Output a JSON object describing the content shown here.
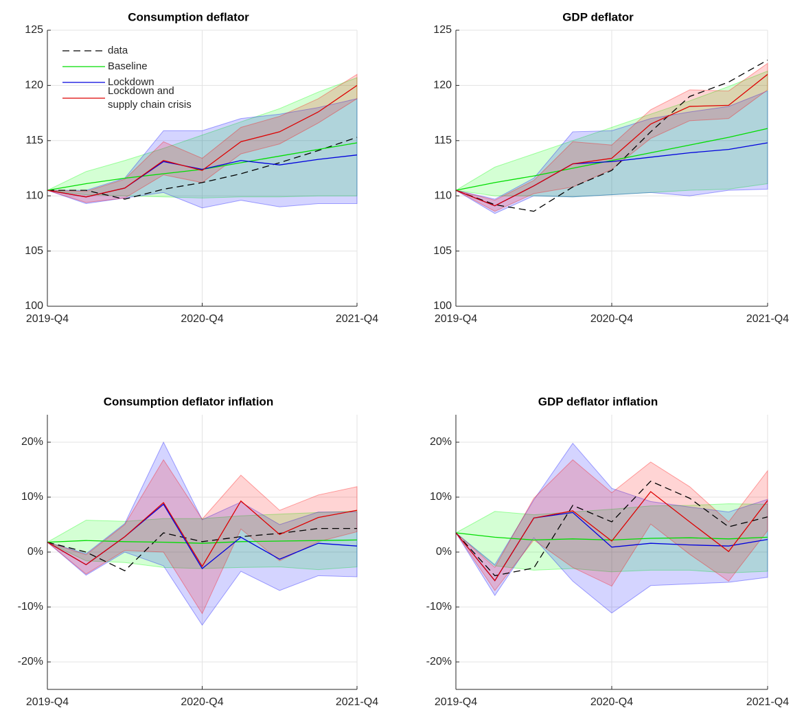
{
  "chart_data": [
    {
      "type": "line",
      "title": "Consumption deflator",
      "categories": [
        "2019-Q4",
        null,
        null,
        null,
        "2020-Q4",
        null,
        null,
        null,
        "2021-Q4"
      ],
      "ylim": [
        100,
        125
      ],
      "yticks": [
        100,
        105,
        110,
        115,
        120,
        125
      ],
      "grid": true,
      "legend": "upper left",
      "series": [
        {
          "name": "data",
          "color": "#000000",
          "dash": true,
          "values": [
            110.5,
            110.5,
            109.7,
            110.6,
            111.2,
            112.0,
            113.0,
            114.1,
            115.3
          ]
        },
        {
          "name": "Baseline",
          "color": "#00dd00",
          "values": [
            110.5,
            111.1,
            111.6,
            112.0,
            112.4,
            113.0,
            113.6,
            114.2,
            114.8
          ]
        },
        {
          "name": "Lockdown",
          "color": "#0000dd",
          "values": [
            110.5,
            109.9,
            110.7,
            113.1,
            112.4,
            113.2,
            112.8,
            113.3,
            113.7
          ]
        },
        {
          "name": "Lockdown and\nsupply chain crisis",
          "color": "#dd0000",
          "values": [
            110.5,
            109.9,
            110.7,
            113.2,
            112.3,
            114.9,
            115.8,
            117.6,
            120.0
          ]
        }
      ],
      "bands": [
        {
          "color": "#00ff00",
          "upper": [
            110.5,
            112.2,
            113.2,
            114.3,
            115.5,
            116.7,
            117.9,
            119.4,
            120.7
          ],
          "lower": [
            110.5,
            110.1,
            110.0,
            109.9,
            109.8,
            109.9,
            109.9,
            110.0,
            110.0
          ]
        },
        {
          "color": "#0000ff",
          "upper": [
            110.5,
            110.5,
            111.6,
            115.9,
            115.9,
            117.0,
            117.4,
            118.0,
            118.8
          ],
          "lower": [
            110.5,
            109.3,
            109.8,
            110.3,
            108.9,
            109.6,
            109.0,
            109.3,
            109.3
          ]
        },
        {
          "color": "#ff0000",
          "upper": [
            110.5,
            110.4,
            111.5,
            114.9,
            113.4,
            116.2,
            117.2,
            118.8,
            121.0
          ],
          "lower": [
            110.5,
            109.4,
            109.8,
            111.9,
            111.2,
            113.8,
            114.7,
            116.6,
            118.8
          ]
        }
      ]
    },
    {
      "type": "line",
      "title": "GDP deflator",
      "categories": [
        "2019-Q4",
        null,
        null,
        null,
        "2020-Q4",
        null,
        null,
        null,
        "2021-Q4"
      ],
      "ylim": [
        100,
        125
      ],
      "yticks": [
        100,
        105,
        110,
        115,
        120,
        125
      ],
      "grid": true,
      "series": [
        {
          "color": "#000000",
          "dash": true,
          "values": [
            110.5,
            109.2,
            108.6,
            110.8,
            112.3,
            115.8,
            119.0,
            120.3,
            122.3
          ]
        },
        {
          "color": "#00dd00",
          "values": [
            110.5,
            111.2,
            111.8,
            112.5,
            113.2,
            113.9,
            114.6,
            115.3,
            116.1
          ]
        },
        {
          "color": "#0000dd",
          "values": [
            110.5,
            109.1,
            110.9,
            112.9,
            113.1,
            113.5,
            113.9,
            114.2,
            114.8
          ]
        },
        {
          "color": "#dd0000",
          "values": [
            110.5,
            109.1,
            110.9,
            112.9,
            113.4,
            116.5,
            118.1,
            118.2,
            121.0
          ]
        }
      ],
      "bands": [
        {
          "color": "#00ff00",
          "upper": [
            110.5,
            112.6,
            113.8,
            115.0,
            116.2,
            117.4,
            118.6,
            119.9,
            121.3
          ],
          "lower": [
            110.5,
            110.0,
            110.0,
            109.9,
            110.1,
            110.3,
            110.5,
            110.6,
            111.1
          ]
        },
        {
          "color": "#0000ff",
          "upper": [
            110.5,
            109.7,
            111.6,
            115.8,
            115.9,
            117.0,
            117.6,
            118.1,
            119.5
          ],
          "lower": [
            110.5,
            108.4,
            110.0,
            109.9,
            110.1,
            110.3,
            110.0,
            110.5,
            110.6
          ]
        },
        {
          "color": "#ff0000",
          "upper": [
            110.5,
            109.6,
            111.4,
            114.9,
            114.6,
            117.8,
            119.6,
            119.5,
            122.0
          ],
          "lower": [
            110.5,
            108.6,
            110.2,
            110.8,
            112.4,
            115.2,
            116.8,
            117.0,
            119.6
          ]
        }
      ]
    },
    {
      "type": "line",
      "title": "Consumption deflator inflation",
      "categories": [
        "2019-Q4",
        null,
        null,
        null,
        "2020-Q4",
        null,
        null,
        null,
        "2021-Q4"
      ],
      "ylim": [
        -25,
        25
      ],
      "yticks": [
        {
          "value": -20,
          "label": "-20%"
        },
        {
          "value": -10,
          "label": "-10%"
        },
        {
          "value": 0,
          "label": "0%"
        },
        {
          "value": 10,
          "label": "10%"
        },
        {
          "value": 20,
          "label": "20%"
        }
      ],
      "grid": true,
      "series": [
        {
          "color": "#000000",
          "dash": true,
          "values": [
            1.8,
            0.0,
            -3.4,
            3.5,
            1.9,
            2.8,
            3.4,
            4.3,
            4.3
          ]
        },
        {
          "color": "#00dd00",
          "values": [
            1.8,
            2.1,
            1.9,
            1.8,
            1.6,
            1.9,
            2.0,
            2.1,
            2.2
          ]
        },
        {
          "color": "#0000dd",
          "values": [
            1.8,
            -2.3,
            2.8,
            8.7,
            -3.0,
            2.7,
            -1.3,
            1.6,
            1.1
          ]
        },
        {
          "color": "#dd0000",
          "values": [
            1.8,
            -2.3,
            2.8,
            9.0,
            -2.6,
            9.3,
            3.2,
            6.3,
            7.6
          ]
        }
      ],
      "bands": [
        {
          "color": "#00ff00",
          "upper": [
            1.8,
            5.8,
            5.6,
            6.1,
            6.1,
            6.6,
            6.9,
            7.2,
            7.5
          ],
          "lower": [
            1.8,
            -1.6,
            -1.9,
            -2.8,
            -3.0,
            -2.8,
            -2.7,
            -3.2,
            -2.7
          ]
        },
        {
          "color": "#0000ff",
          "upper": [
            1.8,
            -0.3,
            5.2,
            20.0,
            5.9,
            9.1,
            5.0,
            7.3,
            7.3
          ],
          "lower": [
            1.8,
            -4.2,
            0.0,
            -2.5,
            -13.3,
            -3.5,
            -7.0,
            -4.3,
            -4.5
          ]
        },
        {
          "color": "#ff0000",
          "upper": [
            1.8,
            -0.5,
            5.0,
            16.8,
            6.0,
            14.0,
            7.6,
            10.4,
            11.9
          ],
          "lower": [
            1.8,
            -4.0,
            0.3,
            0.0,
            -11.2,
            4.2,
            -1.6,
            1.9,
            3.7
          ]
        }
      ]
    },
    {
      "type": "line",
      "title": "GDP deflator inflation",
      "categories": [
        "2019-Q4",
        null,
        null,
        null,
        "2020-Q4",
        null,
        null,
        null,
        "2021-Q4"
      ],
      "ylim": [
        -25,
        25
      ],
      "yticks": [
        {
          "value": -20,
          "label": "-20%"
        },
        {
          "value": -10,
          "label": "-10%"
        },
        {
          "value": 0,
          "label": "0%"
        },
        {
          "value": 10,
          "label": "10%"
        },
        {
          "value": 20,
          "label": "20%"
        }
      ],
      "grid": true,
      "series": [
        {
          "color": "#000000",
          "dash": true,
          "values": [
            3.5,
            -4.3,
            -2.9,
            8.5,
            5.5,
            12.9,
            9.8,
            4.6,
            6.4
          ]
        },
        {
          "color": "#00dd00",
          "values": [
            3.5,
            2.7,
            2.2,
            2.4,
            2.2,
            2.5,
            2.6,
            2.4,
            2.7
          ]
        },
        {
          "color": "#0000dd",
          "values": [
            3.5,
            -5.2,
            6.2,
            7.2,
            0.9,
            1.6,
            1.3,
            1.1,
            2.3
          ]
        },
        {
          "color": "#dd0000",
          "values": [
            3.5,
            -5.2,
            6.2,
            7.5,
            2.0,
            11.0,
            5.5,
            0.1,
            9.4
          ]
        }
      ],
      "bands": [
        {
          "color": "#00ff00",
          "upper": [
            3.5,
            7.4,
            6.8,
            7.3,
            7.8,
            8.4,
            8.5,
            8.8,
            8.7
          ],
          "lower": [
            3.5,
            -2.5,
            -3.3,
            -3.0,
            -3.6,
            -3.3,
            -3.3,
            -3.8,
            -3.5
          ]
        },
        {
          "color": "#0000ff",
          "upper": [
            3.5,
            -2.3,
            9.5,
            19.8,
            11.6,
            9.2,
            8.2,
            7.3,
            9.6
          ],
          "lower": [
            3.5,
            -7.9,
            2.6,
            -5.3,
            -11.1,
            -6.1,
            -5.8,
            -5.5,
            -4.6
          ]
        },
        {
          "color": "#ff0000",
          "upper": [
            3.5,
            -2.8,
            9.8,
            16.8,
            10.8,
            16.4,
            11.9,
            5.5,
            14.8
          ],
          "lower": [
            3.5,
            -7.0,
            2.2,
            -2.8,
            -6.2,
            5.1,
            -0.4,
            -5.3,
            3.9
          ]
        }
      ]
    }
  ]
}
